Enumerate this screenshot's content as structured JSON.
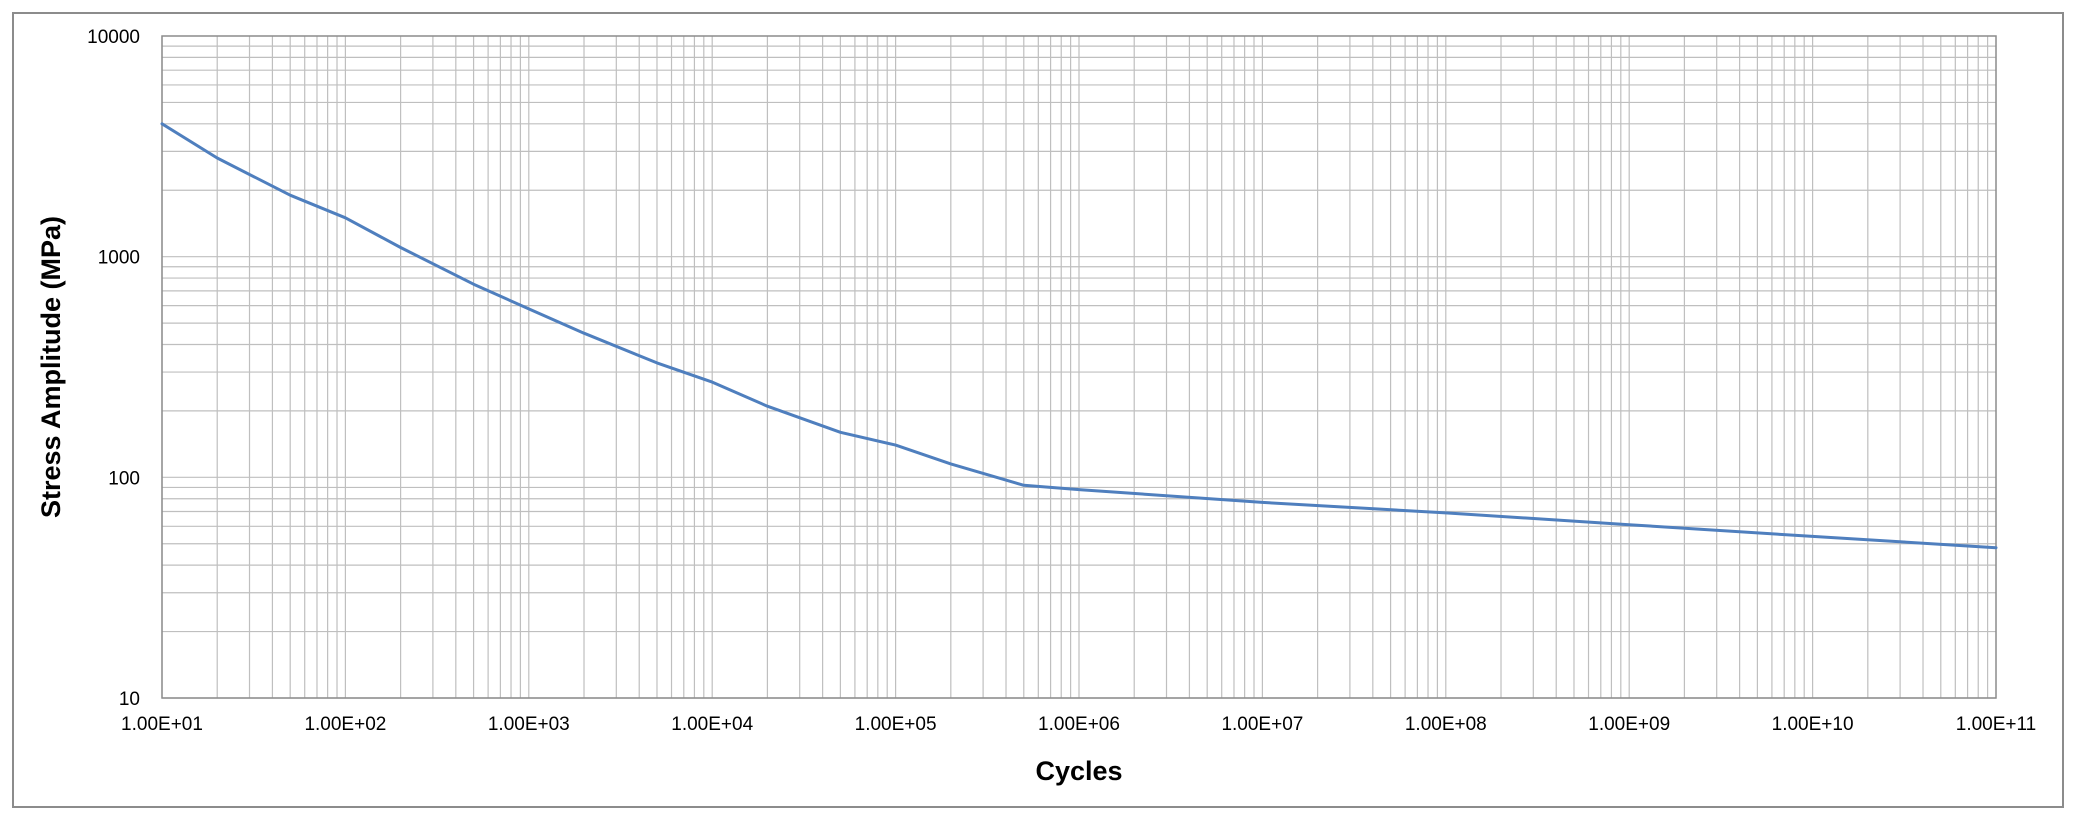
{
  "chart_data": {
    "type": "line",
    "title": "",
    "xlabel": "Cycles",
    "ylabel": "Stress Amplitude (MPa)",
    "x_scale": "log",
    "y_scale": "log",
    "xlim": [
      10,
      100000000000
    ],
    "ylim": [
      10,
      10000
    ],
    "x_tick_labels": [
      "1.00E+01",
      "1.00E+02",
      "1.00E+03",
      "1.00E+04",
      "1.00E+05",
      "1.00E+06",
      "1.00E+07",
      "1.00E+08",
      "1.00E+09",
      "1.00E+10",
      "1.00E+11"
    ],
    "y_tick_labels": [
      "10",
      "100",
      "1000",
      "10000"
    ],
    "grid": true,
    "legend": "none",
    "colors": {
      "series": "#4f7fbe",
      "grid": "#bfbfbf",
      "frame": "#8c8c8c"
    },
    "series": [
      {
        "x": [
          10,
          20,
          50,
          100,
          200,
          500,
          1000,
          2000,
          5000,
          10000,
          20000,
          50000,
          100000,
          200000,
          500000,
          1000000,
          10000000,
          100000000,
          1000000000,
          10000000000,
          100000000000
        ],
        "y": [
          4000,
          2800,
          1900,
          1500,
          1100,
          750,
          580,
          450,
          330,
          270,
          210,
          160,
          140,
          115,
          92,
          88,
          77,
          69,
          61,
          54,
          48
        ]
      }
    ]
  }
}
